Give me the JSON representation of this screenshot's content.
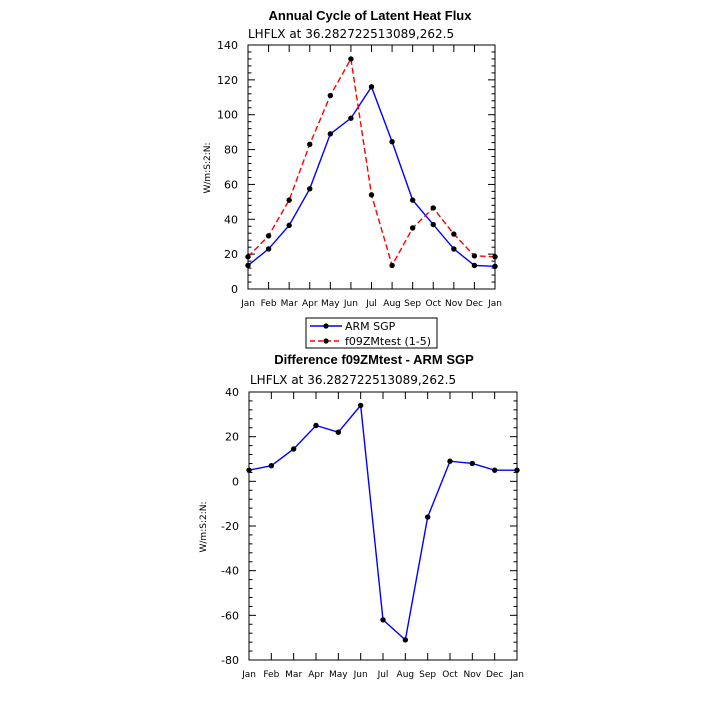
{
  "chart_data": [
    {
      "type": "line",
      "title": "Annual Cycle of Latent Heat Flux",
      "subtitle": "LHFLX at 36.282722513089,262.5",
      "ylabel": "W/m:S:2:N:",
      "xlabel": "",
      "categories": [
        "Jan",
        "Feb",
        "Mar",
        "Apr",
        "May",
        "Jun",
        "Jul",
        "Aug",
        "Sep",
        "Oct",
        "Nov",
        "Dec",
        "Jan"
      ],
      "ylim": [
        0,
        140
      ],
      "yticks": [
        0,
        20,
        40,
        60,
        80,
        100,
        120,
        140
      ],
      "series": [
        {
          "name": "ARM SGP",
          "color": "#0000ff",
          "dashed": false,
          "values": [
            13.5,
            23,
            36.5,
            57.5,
            89,
            98,
            116,
            84.5,
            51,
            37,
            23,
            13.5,
            13
          ]
        },
        {
          "name": "f09ZMtest (1-5)",
          "color": "#ff0000",
          "dashed": true,
          "values": [
            18.5,
            30.5,
            51,
            83,
            111,
            132,
            54,
            13.5,
            35,
            46.5,
            31.5,
            19,
            18.5
          ]
        }
      ],
      "legend": [
        "ARM SGP",
        "f09ZMtest (1-5)"
      ]
    },
    {
      "type": "line",
      "title": "Difference f09ZMtest - ARM SGP",
      "subtitle": "LHFLX at 36.282722513089,262.5",
      "ylabel": "W/m:S:2:N:",
      "xlabel": "",
      "categories": [
        "Jan",
        "Feb",
        "Mar",
        "Apr",
        "May",
        "Jun",
        "Jul",
        "Aug",
        "Sep",
        "Oct",
        "Nov",
        "Dec",
        "Jan"
      ],
      "ylim": [
        -80,
        40
      ],
      "yticks": [
        -80,
        -60,
        -40,
        -20,
        0,
        20,
        40
      ],
      "series": [
        {
          "name": "Difference",
          "color": "#0000ff",
          "dashed": false,
          "values": [
            5,
            7,
            14.5,
            25,
            22,
            34,
            -62,
            -71,
            -16,
            9,
            8,
            5,
            5
          ]
        }
      ]
    }
  ]
}
